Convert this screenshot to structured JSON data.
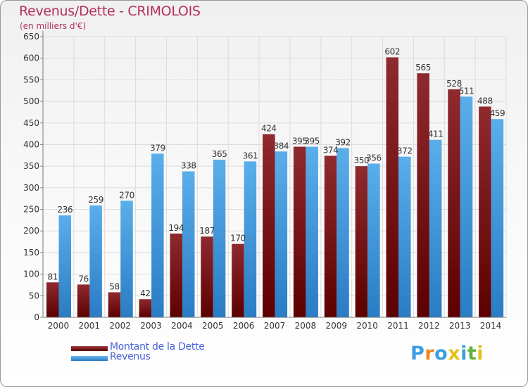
{
  "chart_data": {
    "type": "bar",
    "title": "Revenus/Dette - CRIMOLOIS",
    "subtitle": "(en milliers d'€)",
    "categories": [
      "2000",
      "2001",
      "2002",
      "2003",
      "2004",
      "2005",
      "2006",
      "2007",
      "2008",
      "2009",
      "2010",
      "2011",
      "2012",
      "2013",
      "2014"
    ],
    "series": [
      {
        "name": "Montant de la Dette",
        "color": "#7a1216",
        "values": [
          81,
          76,
          58,
          42,
          194,
          187,
          170,
          424,
          395,
          374,
          350,
          602,
          565,
          528,
          488
        ]
      },
      {
        "name": "Revenus",
        "color": "#3b8fd6",
        "values": [
          236,
          259,
          270,
          379,
          338,
          365,
          361,
          384,
          395,
          392,
          356,
          372,
          411,
          511,
          459
        ]
      }
    ],
    "ylim": [
      0,
      650
    ],
    "yticks": [
      0,
      50,
      100,
      150,
      200,
      250,
      300,
      350,
      400,
      450,
      500,
      550,
      600,
      650
    ],
    "grid": true,
    "legend_position": "bottom-left",
    "xlabel": "",
    "ylabel": ""
  },
  "logo": {
    "text": "Proxiti",
    "letters": [
      {
        "ch": "P",
        "color": "#3a9ee0"
      },
      {
        "ch": "r",
        "color": "#f08a1c"
      },
      {
        "ch": "o",
        "color": "#3a9ee0"
      },
      {
        "ch": "x",
        "color": "#e2c21a"
      },
      {
        "ch": "i",
        "color": "#3a9ee0"
      },
      {
        "ch": "t",
        "color": "#5fb43a"
      },
      {
        "ch": "i",
        "color": "#e2c21a"
      }
    ]
  }
}
